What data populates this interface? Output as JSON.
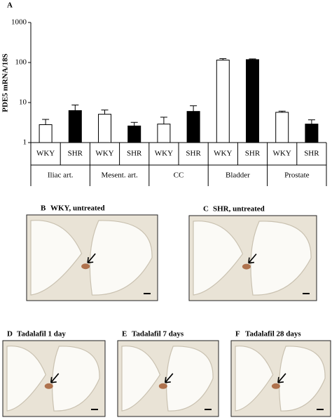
{
  "chart_data": {
    "type": "bar",
    "panel_label": "A",
    "y_label": "PDE5 mRNA/18S",
    "categories": [
      "Iliac art.",
      "Mesent. art.",
      "CC",
      "Bladder",
      "Prostate"
    ],
    "series": [
      {
        "name": "WKY",
        "color": "#ffffff",
        "values": [
          2.8,
          5.1,
          2.9,
          115,
          5.7
        ],
        "errors": [
          1.0,
          1.4,
          1.4,
          10,
          0.4
        ]
      },
      {
        "name": "SHR",
        "color": "#000000",
        "values": [
          6.3,
          2.6,
          6.0,
          118,
          2.9
        ],
        "errors": [
          2.4,
          0.6,
          2.3,
          5,
          0.8
        ]
      }
    ],
    "log": true,
    "ylim": [
      1,
      1000
    ],
    "yticks": [
      1,
      10,
      100,
      1000
    ]
  },
  "panels": [
    {
      "label": "B",
      "title": "WKY, untreated"
    },
    {
      "label": "C",
      "title": "SHR, untreated"
    },
    {
      "label": "D",
      "title": "Tadalafil 1 day"
    },
    {
      "label": "E",
      "title": "Tadalafil 7 days"
    },
    {
      "label": "F",
      "title": "Tadalafil 28 days"
    }
  ]
}
